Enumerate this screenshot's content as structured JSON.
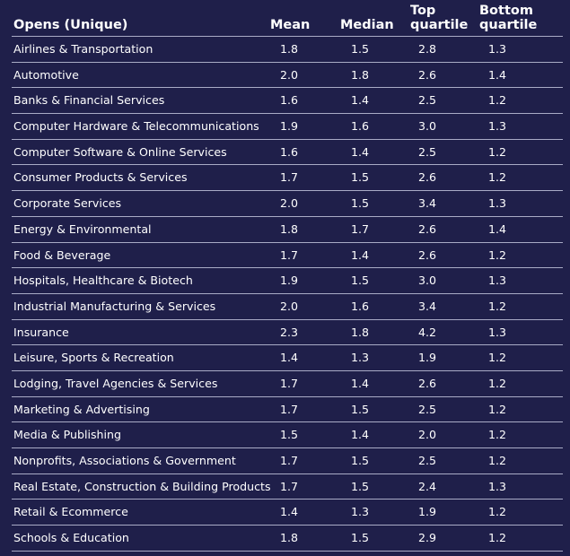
{
  "header": {
    "col1": "Opens (Unique)",
    "col2": "Mean",
    "col3": "Median",
    "col4_line1": "Top",
    "col4_line2": "quartile",
    "col5_line1": "Bottom",
    "col5_line2": "quartile"
  },
  "rows": [
    {
      "name": "Airlines & Transportation",
      "mean": "1.8",
      "median": "1.5",
      "top": "2.8",
      "bottom": "1.3"
    },
    {
      "name": "Automotive",
      "mean": "2.0",
      "median": "1.8",
      "top": "2.6",
      "bottom": "1.4"
    },
    {
      "name": "Banks & Financial Services",
      "mean": "1.6",
      "median": "1.4",
      "top": "2.5",
      "bottom": "1.2"
    },
    {
      "name": "Computer Hardware & Telecommunications",
      "mean": "1.9",
      "median": "1.6",
      "top": "3.0",
      "bottom": "1.3"
    },
    {
      "name": "Computer Software & Online Services",
      "mean": "1.6",
      "median": "1.4",
      "top": "2.5",
      "bottom": "1.2"
    },
    {
      "name": "Consumer Products & Services",
      "mean": "1.7",
      "median": "1.5",
      "top": "2.6",
      "bottom": "1.2"
    },
    {
      "name": "Corporate Services",
      "mean": "2.0",
      "median": "1.5",
      "top": "3.4",
      "bottom": "1.3"
    },
    {
      "name": "Energy & Environmental",
      "mean": "1.8",
      "median": "1.7",
      "top": "2.6",
      "bottom": "1.4"
    },
    {
      "name": "Food & Beverage",
      "mean": "1.7",
      "median": "1.4",
      "top": "2.6",
      "bottom": "1.2"
    },
    {
      "name": "Hospitals, Healthcare & Biotech",
      "mean": "1.9",
      "median": "1.5",
      "top": "3.0",
      "bottom": "1.3"
    },
    {
      "name": "Industrial Manufacturing & Services",
      "mean": "2.0",
      "median": "1.6",
      "top": "3.4",
      "bottom": "1.2"
    },
    {
      "name": "Insurance",
      "mean": "2.3",
      "median": "1.8",
      "top": "4.2",
      "bottom": "1.3"
    },
    {
      "name": "Leisure, Sports & Recreation",
      "mean": "1.4",
      "median": "1.3",
      "top": "1.9",
      "bottom": "1.2"
    },
    {
      "name": "Lodging, Travel Agencies & Services",
      "mean": "1.7",
      "median": "1.4",
      "top": "2.6",
      "bottom": "1.2"
    },
    {
      "name": "Marketing & Advertising",
      "mean": "1.7",
      "median": "1.5",
      "top": "2.5",
      "bottom": "1.2"
    },
    {
      "name": "Media & Publishing",
      "mean": "1.5",
      "median": "1.4",
      "top": "2.0",
      "bottom": "1.2"
    },
    {
      "name": "Nonprofits, Associations & Government",
      "mean": "1.7",
      "median": "1.5",
      "top": "2.5",
      "bottom": "1.2"
    },
    {
      "name": "Real Estate, Construction & Building Products",
      "mean": "1.7",
      "median": "1.5",
      "top": "2.4",
      "bottom": "1.3"
    },
    {
      "name": "Retail & Ecommerce",
      "mean": "1.4",
      "median": "1.3",
      "top": "1.9",
      "bottom": "1.2"
    },
    {
      "name": "Schools & Education",
      "mean": "1.8",
      "median": "1.5",
      "top": "2.9",
      "bottom": "1.2"
    }
  ],
  "colors": {
    "background": "#1f1f4a",
    "text": "#ffffff",
    "rule": "#a9abc6"
  }
}
